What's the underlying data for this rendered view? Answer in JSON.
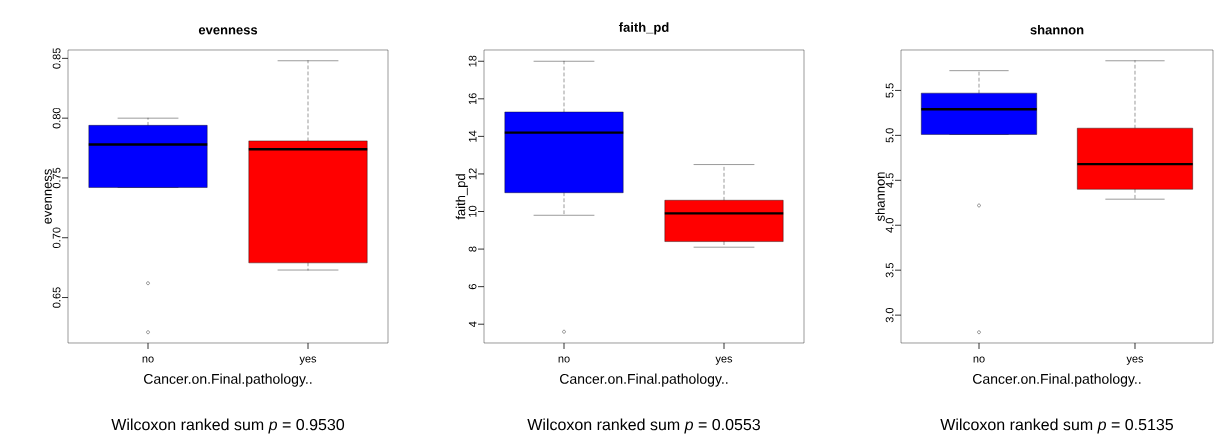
{
  "chart_data": [
    {
      "type": "box",
      "title": "evenness",
      "xlabel": "Cancer.on.Final.pathology..",
      "ylabel": "evenness",
      "categories": [
        "no",
        "yes"
      ],
      "colors": [
        "#0000ff",
        "#ff0000"
      ],
      "boxes": [
        {
          "low": 0.742,
          "q1": 0.742,
          "median": 0.778,
          "q3": 0.794,
          "high": 0.8,
          "outliers": [
            0.662,
            0.621
          ]
        },
        {
          "low": 0.673,
          "q1": 0.679,
          "median": 0.774,
          "q3": 0.781,
          "high": 0.848
        }
      ],
      "ylim": [
        0.612,
        0.857
      ],
      "yticks": [
        {
          "value": 0.65,
          "label": "0.65"
        },
        {
          "value": 0.7,
          "label": "0.70"
        },
        {
          "value": 0.75,
          "label": "0.75"
        },
        {
          "value": 0.8,
          "label": "0.80"
        },
        {
          "value": 0.85,
          "label": "0.85"
        }
      ],
      "annotations": [
        "Wilcoxon ranked sum *p* = 0.9530"
      ]
    },
    {
      "type": "box",
      "title": "faith_pd",
      "xlabel": "Cancer.on.Final.pathology..",
      "ylabel": "faith_pd",
      "categories": [
        "no",
        "yes"
      ],
      "colors": [
        "#0000ff",
        "#ff0000"
      ],
      "boxes": [
        {
          "low": 9.8,
          "q1": 11.0,
          "median": 14.2,
          "q3": 15.3,
          "high": 18.0,
          "outliers": [
            3.6
          ]
        },
        {
          "low": 8.1,
          "q1": 8.4,
          "median": 9.9,
          "q3": 10.6,
          "high": 12.5
        }
      ],
      "ylim": [
        3.0,
        18.6
      ],
      "yticks": [
        4,
        6,
        8,
        10,
        12,
        14,
        16,
        18
      ],
      "annotations": [
        "Wilcoxon ranked sum *p* = 0.0553"
      ]
    },
    {
      "type": "box",
      "title": "shannon",
      "xlabel": "Cancer.on.Final.pathology..",
      "ylabel": "shannon",
      "categories": [
        "no",
        "yes"
      ],
      "colors": [
        "#0000ff",
        "#ff0000"
      ],
      "boxes": [
        {
          "low": 5.01,
          "q1": 5.01,
          "median": 5.29,
          "q3": 5.47,
          "high": 5.72,
          "outliers": [
            4.22,
            2.81
          ]
        },
        {
          "low": 4.29,
          "q1": 4.4,
          "median": 4.68,
          "q3": 5.08,
          "high": 5.83
        }
      ],
      "ylim": [
        2.69,
        5.95
      ],
      "yticks": [
        {
          "value": 3.0,
          "label": "3.0"
        },
        {
          "value": 3.5,
          "label": "3.5"
        },
        {
          "value": 4.0,
          "label": "4.0"
        },
        {
          "value": 4.5,
          "label": "4.5"
        },
        {
          "value": 5.0,
          "label": "5.0"
        },
        {
          "value": 5.5,
          "label": "5.5"
        }
      ],
      "annotations": [
        "Wilcoxon ranked sum *p* = 0.5135"
      ]
    }
  ]
}
